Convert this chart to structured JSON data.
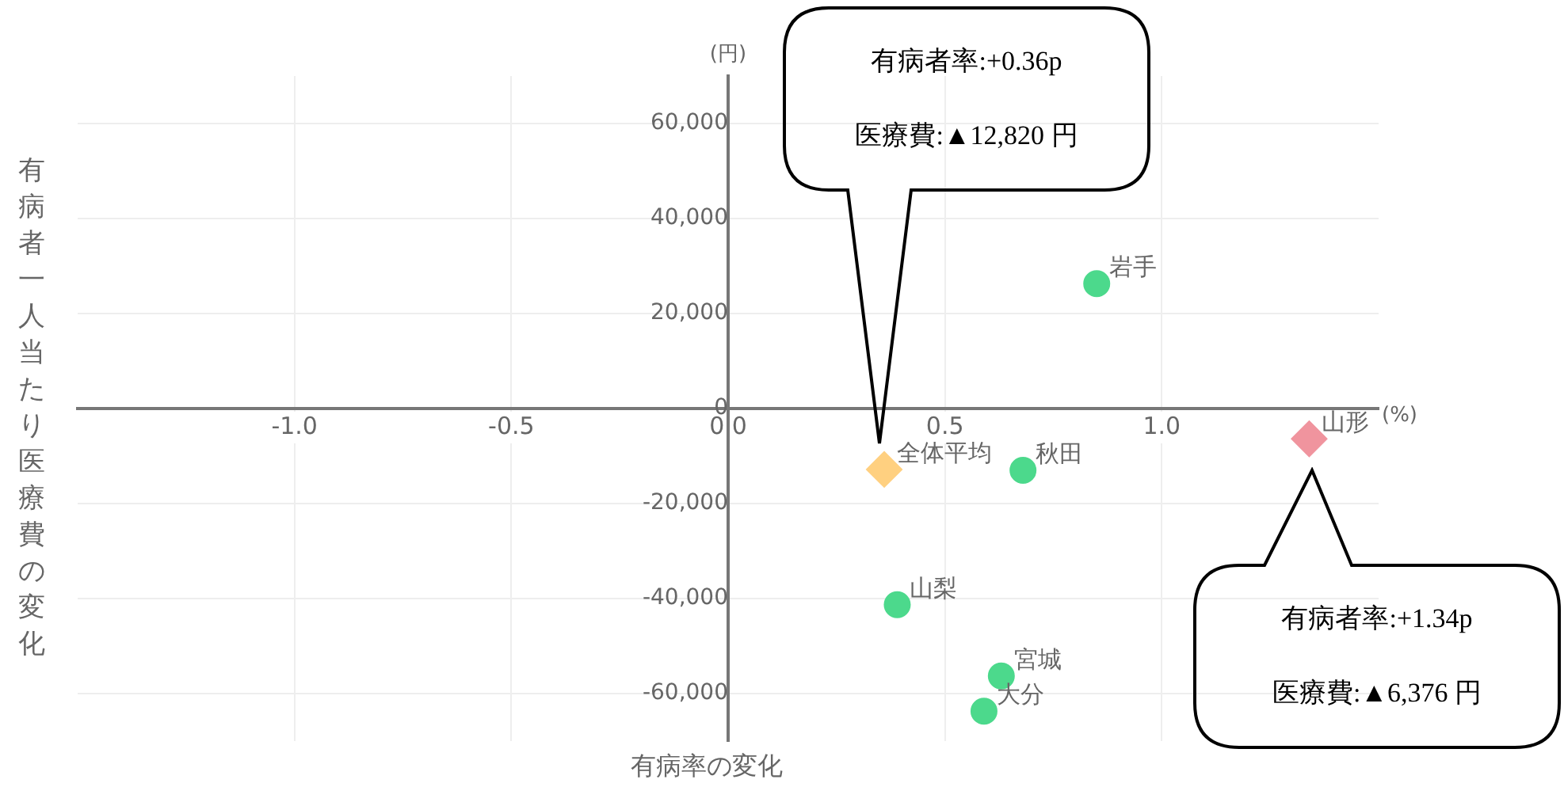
{
  "chart_data": {
    "type": "scatter",
    "xlabel": "有病率の変化",
    "ylabel": "有病者一人当たり医療費の変化",
    "xlim": [
      -1.5,
      1.5
    ],
    "ylim": [
      -70000,
      70000
    ],
    "xticks": [
      {
        "value": -1,
        "label": "-1.0"
      },
      {
        "value": -0.5,
        "label": "-0.5"
      },
      {
        "value": 0,
        "label": "0.0"
      },
      {
        "value": 0.5,
        "label": "0.5"
      },
      {
        "value": 1,
        "label": "1.0"
      }
    ],
    "yticks": [
      {
        "value": -60000,
        "label": "-60,000"
      },
      {
        "value": -40000,
        "label": "-40,000"
      },
      {
        "value": -20000,
        "label": "-20,000"
      },
      0,
      {
        "value": 20000,
        "label": "20,000"
      },
      {
        "value": 40000,
        "label": "40,000"
      },
      {
        "value": 60000,
        "label": "60,000"
      }
    ],
    "grid": true,
    "legend": false,
    "series": [
      {
        "name": "岩手",
        "color": "#4cd98c",
        "marker": "circle",
        "x": [
          0.85
        ],
        "values": [
          26300
        ]
      },
      {
        "name": "全体平均",
        "color": "#ffd080",
        "marker": "diamond",
        "x": [
          0.36
        ],
        "values": [
          -12820
        ]
      },
      {
        "name": "秋田",
        "color": "#4cd98c",
        "marker": "circle",
        "x": [
          0.68
        ],
        "values": [
          -13000
        ]
      },
      {
        "name": "山形",
        "color": "#f0949e",
        "marker": "diamond",
        "x": [
          1.34
        ],
        "values": [
          -6376
        ]
      },
      {
        "name": "山梨",
        "color": "#4cd98c",
        "marker": "circle",
        "x": [
          0.39
        ],
        "values": [
          -41300
        ]
      },
      {
        "name": "宮城",
        "color": "#4cd98c",
        "marker": "circle",
        "x": [
          0.63
        ],
        "values": [
          -56300
        ]
      },
      {
        "name": "大分",
        "color": "#4cd98c",
        "marker": "circle",
        "x": [
          0.59
        ],
        "values": [
          -63700
        ]
      }
    ],
    "annotations": [
      "(円)",
      "(%)",
      "有病者率:+0.36p",
      "医療費:▲12,820 円",
      "有病者率:+1.34p",
      "医療費:▲6,376 円"
    ]
  }
}
